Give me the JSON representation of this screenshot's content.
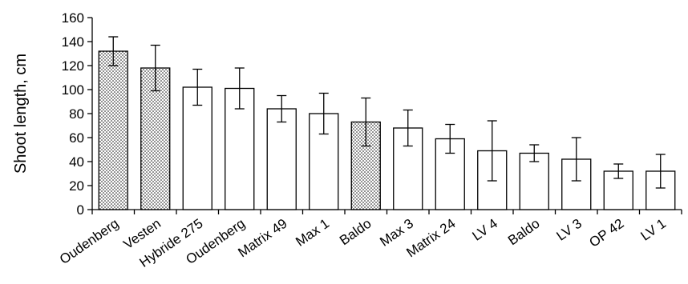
{
  "chart_data": {
    "type": "bar",
    "title": "",
    "xlabel": "",
    "ylabel": "Shoot length, cm",
    "ylim": [
      0,
      160
    ],
    "yticks": [
      0,
      20,
      40,
      60,
      80,
      100,
      120,
      140,
      160
    ],
    "grid": false,
    "legend": "none",
    "categories": [
      "Oudenberg",
      "Vesten",
      "Hybride 275",
      "Oudenberg",
      "Matrix 49",
      "Max 1",
      "Baldo",
      "Max 3",
      "Matrix 24",
      "LV 4",
      "Baldo",
      "LV 3",
      "OP 42",
      "LV 1"
    ],
    "values": [
      132,
      118,
      102,
      101,
      84,
      80,
      73,
      68,
      59,
      49,
      47,
      42,
      32,
      32
    ],
    "error": [
      12,
      19,
      15,
      17,
      11,
      17,
      20,
      15,
      12,
      25,
      7,
      18,
      6,
      14
    ],
    "fill": [
      "dotted",
      "dotted",
      "plain",
      "plain",
      "plain",
      "plain",
      "dotted",
      "plain",
      "plain",
      "plain",
      "plain",
      "plain",
      "plain",
      "plain"
    ],
    "colors": {
      "bar_fill": "#ffffff",
      "bar_stroke": "#000000",
      "dot": "#000000",
      "axis": "#000000"
    }
  }
}
